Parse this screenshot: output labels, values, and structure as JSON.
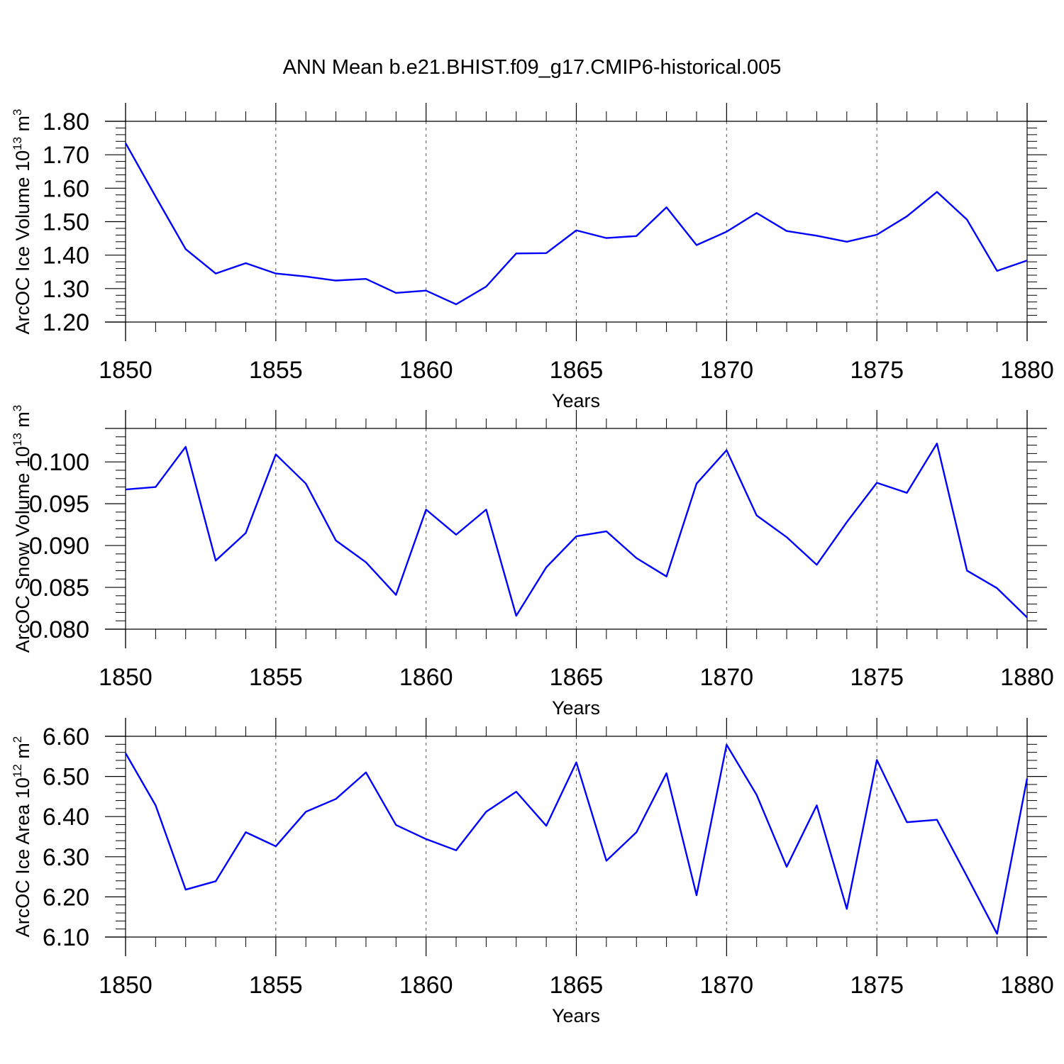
{
  "title": "ANN Mean b.e21.BHIST.f09_g17.CMIP6-historical.005",
  "colors": {
    "line": "#0000ff",
    "axis": "#000000",
    "grid": "#555555"
  },
  "chart_data": [
    {
      "type": "line",
      "xlabel": "Years",
      "ylabel": {
        "main": "ArcOC Ice Volume 10",
        "sup1": "13",
        "mid": " m",
        "sup2": "3"
      },
      "xlim": [
        1850,
        1880
      ],
      "ylim": [
        1.2,
        1.8
      ],
      "xticks": [
        1850,
        1855,
        1860,
        1865,
        1870,
        1875,
        1880
      ],
      "yticks": [
        "1.20",
        "1.30",
        "1.40",
        "1.50",
        "1.60",
        "1.70",
        "1.80"
      ],
      "x_grid": "dashed vertical at major x ticks",
      "series": [
        {
          "x": [
            1850,
            1851,
            1852,
            1853,
            1854,
            1855,
            1856,
            1857,
            1858,
            1859,
            1860,
            1861,
            1862,
            1863,
            1864,
            1865,
            1866,
            1867,
            1868,
            1869,
            1870,
            1871,
            1872,
            1873,
            1874,
            1875,
            1876,
            1877,
            1878,
            1879,
            1880
          ],
          "values": [
            1.735,
            1.575,
            1.418,
            1.345,
            1.376,
            1.345,
            1.336,
            1.324,
            1.329,
            1.287,
            1.294,
            1.253,
            1.306,
            1.405,
            1.406,
            1.474,
            1.451,
            1.457,
            1.543,
            1.43,
            1.47,
            1.526,
            1.472,
            1.458,
            1.44,
            1.461,
            1.516,
            1.589,
            1.506,
            1.353,
            1.384
          ]
        }
      ]
    },
    {
      "type": "line",
      "xlabel": "Years",
      "ylabel": {
        "main": "ArcOC Snow Volume 10",
        "sup1": "13",
        "mid": " m",
        "sup2": "3"
      },
      "xlim": [
        1850,
        1880
      ],
      "ylim": [
        0.08,
        0.104
      ],
      "xticks": [
        1850,
        1855,
        1860,
        1865,
        1870,
        1875,
        1880
      ],
      "yticks": [
        "0.080",
        "0.085",
        "0.090",
        "0.095",
        "0.100"
      ],
      "x_grid": "dashed vertical at major x ticks",
      "series": [
        {
          "x": [
            1850,
            1851,
            1852,
            1853,
            1854,
            1855,
            1856,
            1857,
            1858,
            1859,
            1860,
            1861,
            1862,
            1863,
            1864,
            1865,
            1866,
            1867,
            1868,
            1869,
            1870,
            1871,
            1872,
            1873,
            1874,
            1875,
            1876,
            1877,
            1878,
            1879,
            1880
          ],
          "values": [
            0.0967,
            0.097,
            0.1018,
            0.0882,
            0.0915,
            0.1009,
            0.0974,
            0.0906,
            0.088,
            0.0841,
            0.0943,
            0.0913,
            0.0943,
            0.0816,
            0.0874,
            0.0911,
            0.0917,
            0.0885,
            0.0863,
            0.0974,
            0.1014,
            0.0936,
            0.091,
            0.0877,
            0.0928,
            0.0975,
            0.0963,
            0.1022,
            0.087,
            0.0849,
            0.0814
          ]
        }
      ]
    },
    {
      "type": "line",
      "xlabel": "Years",
      "ylabel": {
        "main": "ArcOC Ice Area 10",
        "sup1": "12",
        "mid": " m",
        "sup2": "2"
      },
      "xlim": [
        1850,
        1880
      ],
      "ylim": [
        6.1,
        6.6
      ],
      "xticks": [
        1850,
        1855,
        1860,
        1865,
        1870,
        1875,
        1880
      ],
      "yticks": [
        "6.10",
        "6.20",
        "6.30",
        "6.40",
        "6.50",
        "6.60"
      ],
      "x_grid": "dashed vertical at major x ticks",
      "series": [
        {
          "x": [
            1850,
            1851,
            1852,
            1853,
            1854,
            1855,
            1856,
            1857,
            1858,
            1859,
            1860,
            1861,
            1862,
            1863,
            1864,
            1865,
            1866,
            1867,
            1868,
            1869,
            1870,
            1871,
            1872,
            1873,
            1874,
            1875,
            1876,
            1877,
            1878,
            1879,
            1880
          ],
          "values": [
            6.558,
            6.428,
            6.218,
            6.239,
            6.361,
            6.326,
            6.412,
            6.444,
            6.51,
            6.379,
            6.344,
            6.316,
            6.412,
            6.462,
            6.377,
            6.535,
            6.29,
            6.361,
            6.508,
            6.204,
            6.579,
            6.454,
            6.275,
            6.428,
            6.17,
            6.541,
            6.386,
            6.392,
            6.251,
            6.108,
            6.495
          ]
        }
      ]
    }
  ]
}
